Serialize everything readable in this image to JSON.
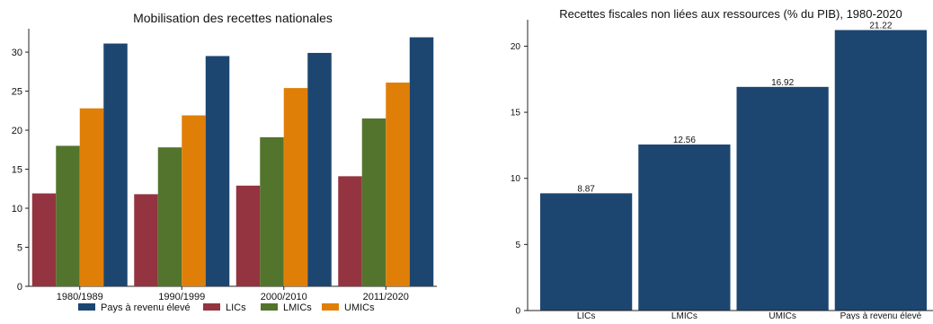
{
  "colors": {
    "pays_revenu_eleve": "#1c4670",
    "lics": "#933440",
    "lmics": "#53742c",
    "umics": "#e07f08",
    "axis": "#222222",
    "text": "#111111"
  },
  "chart_data": [
    {
      "type": "bar",
      "title": "Mobilisation des recettes nationales",
      "xlabel": "",
      "ylabel": "",
      "categories": [
        "1980/1989",
        "1990/1999",
        "2000/2010",
        "2011/2020"
      ],
      "series": [
        {
          "name": "LICs",
          "values": [
            11.9,
            11.8,
            12.9,
            14.1
          ]
        },
        {
          "name": "LMICs",
          "values": [
            18.0,
            17.8,
            19.1,
            21.5
          ]
        },
        {
          "name": "UMICs",
          "values": [
            22.8,
            21.9,
            25.4,
            26.1
          ]
        },
        {
          "name": "Pays à revenu élevé",
          "values": [
            31.1,
            29.5,
            29.9,
            31.9
          ]
        }
      ],
      "legend_order": [
        "Pays à revenu élevé",
        "LICs",
        "LMICs",
        "UMICs"
      ],
      "legend_position": "bottom",
      "ylim": [
        0,
        33
      ],
      "yticks": [
        "0",
        "5",
        "10",
        "15",
        "20",
        "25",
        "30"
      ],
      "grid": false
    },
    {
      "type": "bar",
      "title": "Recettes fiscales non liées aux ressources (% du PIB), 1980-2020",
      "xlabel": "",
      "ylabel": "",
      "categories": [
        "LICs",
        "LMICs",
        "UMICs",
        "Pays à revenu élevé"
      ],
      "values": [
        8.87,
        12.56,
        16.92,
        21.22
      ],
      "data_labels": [
        "8.87",
        "12.56",
        "16.92",
        "21.22"
      ],
      "ylim": [
        0,
        22
      ],
      "yticks": [
        "0",
        "5",
        "10",
        "15",
        "20"
      ],
      "grid": false
    }
  ]
}
